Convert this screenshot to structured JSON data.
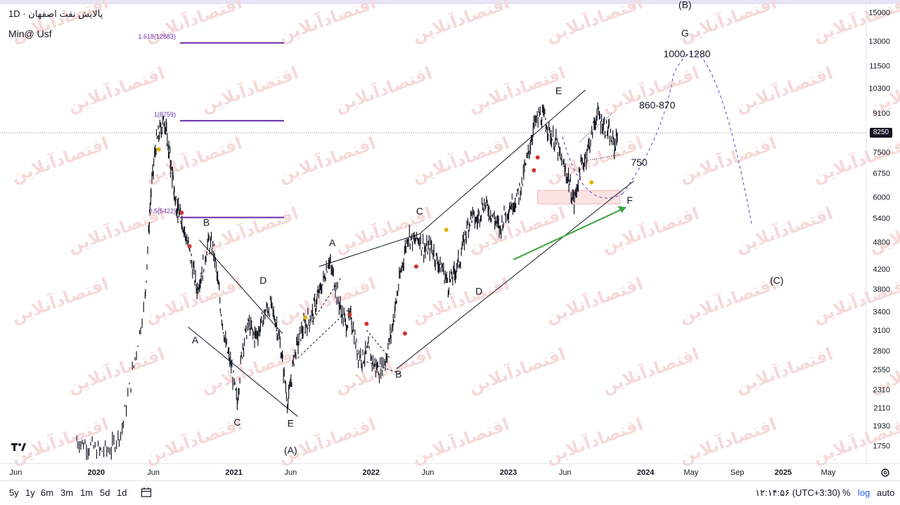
{
  "legend": {
    "title": "پالایش نفت اصفهان · 1D",
    "subtitle": "Min@ Usf"
  },
  "watermark": "اقتصادآنلاین",
  "current_price": "8250",
  "bottom_bar": {
    "timeframes": [
      "5y",
      "1y",
      "6m",
      "3m",
      "1m",
      "5d",
      "1d"
    ],
    "clock": "۱۲:۱۴:۵۶ (UTC+3:30)",
    "percent": "%",
    "log": "log",
    "auto": "auto"
  },
  "chart_data": {
    "type": "line",
    "title": "پالایش نفت اصفهان · 1D",
    "y_scale": "log",
    "ylim": [
      1600,
      15500
    ],
    "y_ticks": [
      1750,
      1930,
      2110,
      2310,
      2550,
      2800,
      3100,
      3400,
      3800,
      4200,
      4800,
      5400,
      6000,
      6750,
      7500,
      8250,
      9100,
      10300,
      11500,
      13000,
      15000
    ],
    "x_ticks": [
      "Jun",
      "2020",
      "Jun",
      "2021",
      "Jun",
      "2022",
      "Jun",
      "2023",
      "Jun",
      "2024",
      "May",
      "Sep",
      "2025",
      "May"
    ],
    "series": [
      {
        "x": [
          "2019-11-10",
          "2019-12-10",
          "2020-01-10",
          "2020-02-10",
          "2020-03-10",
          "2020-04-10",
          "2020-05-10",
          "2020-05-25",
          "2020-06-08",
          "2020-06-20",
          "2020-07-01",
          "2020-07-10",
          "2020-07-20",
          "2020-07-28",
          "2020-08-05",
          "2020-08-15",
          "2020-08-25",
          "2020-09-10",
          "2020-09-25",
          "2020-10-10",
          "2020-10-25",
          "2020-11-10",
          "2020-11-25",
          "2020-12-10",
          "2020-12-25",
          "2021-01-10",
          "2021-01-25",
          "2021-02-10",
          "2021-02-25",
          "2021-03-10",
          "2021-03-25",
          "2021-04-10",
          "2021-04-25",
          "2021-05-10",
          "2021-05-25",
          "2021-06-10",
          "2021-06-25",
          "2021-07-10",
          "2021-07-25",
          "2021-08-10",
          "2021-08-25",
          "2021-09-10",
          "2021-09-25",
          "2021-10-10",
          "2021-10-25",
          "2021-11-10",
          "2021-11-25",
          "2021-12-10",
          "2021-12-25",
          "2022-01-10",
          "2022-01-25",
          "2022-02-10",
          "2022-02-25",
          "2022-03-10",
          "2022-03-25",
          "2022-04-10",
          "2022-04-25",
          "2022-05-10",
          "2022-05-25",
          "2022-06-10",
          "2022-06-25",
          "2022-07-10",
          "2022-07-25",
          "2022-08-10",
          "2022-08-25",
          "2022-09-10",
          "2022-09-25",
          "2022-10-10",
          "2022-10-25",
          "2022-11-10",
          "2022-11-25",
          "2022-12-10",
          "2022-12-25",
          "2023-01-10",
          "2023-01-25",
          "2023-02-10",
          "2023-02-25",
          "2023-03-10",
          "2023-03-25",
          "2023-04-10",
          "2023-04-25",
          "2023-05-10",
          "2023-05-25",
          "2023-06-10",
          "2023-06-25",
          "2023-07-10",
          "2023-07-25",
          "2023-08-10",
          "2023-08-25",
          "2023-09-10",
          "2023-09-25",
          "2023-10-10",
          "2023-10-20"
        ],
        "y": [
          1800,
          1750,
          1700,
          1720,
          1900,
          2600,
          3600,
          6000,
          7800,
          8400,
          8759,
          7800,
          6800,
          6000,
          5600,
          5400,
          5000,
          4400,
          3800,
          4200,
          4800,
          4600,
          3600,
          2900,
          2600,
          2150,
          2900,
          3200,
          3000,
          3100,
          3400,
          3500,
          3200,
          2700,
          2150,
          2700,
          3000,
          3200,
          3300,
          3600,
          3900,
          4400,
          4000,
          3500,
          3200,
          3300,
          2800,
          2700,
          2800,
          2600,
          2550,
          2700,
          3100,
          3600,
          4300,
          5000,
          4800,
          4900,
          4600,
          4700,
          4400,
          4200,
          3900,
          4100,
          4400,
          5000,
          5500,
          5300,
          5800,
          5700,
          5400,
          5100,
          5600,
          5800,
          6000,
          6600,
          7500,
          8500,
          9000,
          8800,
          8100,
          7800,
          7000,
          6600,
          5800,
          6800,
          7300,
          8100,
          9100,
          8600,
          8300,
          7700,
          8250
        ]
      }
    ],
    "fib_levels": [
      {
        "label": "1.618(12883)",
        "value": 12883
      },
      {
        "label": "1(8759)",
        "value": 8759
      },
      {
        "label": "0.5(5422)",
        "value": 5422
      }
    ],
    "wave_labels": [
      {
        "text": "B",
        "x": "2020-10-20",
        "y": 5200
      },
      {
        "text": "A",
        "x": "2020-09-20",
        "y": 2900
      },
      {
        "text": "C",
        "x": "2021-01-10",
        "y": 1930
      },
      {
        "text": "D",
        "x": "2021-03-20",
        "y": 3900
      },
      {
        "text": "E",
        "x": "2021-06-01",
        "y": 1920
      },
      {
        "text": "(A)",
        "x": "2021-06-01",
        "y": 1680
      },
      {
        "text": "A",
        "x": "2021-09-20",
        "y": 4700
      },
      {
        "text": "B",
        "x": "2022-03-15",
        "y": 2450
      },
      {
        "text": "C",
        "x": "2022-05-10",
        "y": 5500
      },
      {
        "text": "D",
        "x": "2022-10-15",
        "y": 3700
      },
      {
        "text": "E",
        "x": "2023-05-15",
        "y": 10000
      },
      {
        "text": "F",
        "x": "2023-11-20",
        "y": 5800
      },
      {
        "text": "750",
        "x": "2023-12-15",
        "y": 7000
      },
      {
        "text": "860-870",
        "x": "2024-02-01",
        "y": 9300
      },
      {
        "text": "1000-1280",
        "x": "2024-04-20",
        "y": 12000
      },
      {
        "text": "G",
        "x": "2024-04-15",
        "y": 13300
      },
      {
        "text": "(B)",
        "x": "2024-04-15",
        "y": 15300
      },
      {
        "text": "(C)",
        "x": "2024-12-15",
        "y": 3900
      }
    ],
    "grid": false,
    "xlabel": "",
    "ylabel": ""
  }
}
